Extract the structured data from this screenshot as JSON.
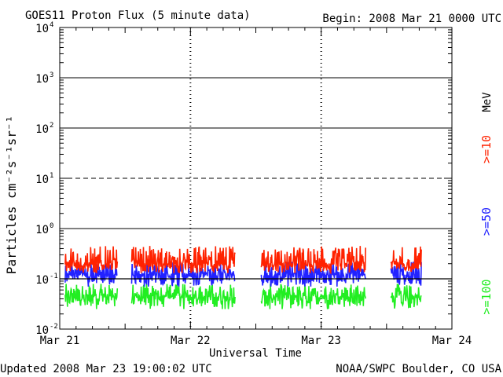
{
  "header": {
    "title": "GOES11 Proton Flux (5 minute data)",
    "begin": "Begin: 2008 Mar 21 0000 UTC"
  },
  "footer": {
    "updated": "Updated 2008 Mar 23 19:00:02 UTC",
    "source": "NOAA/SWPC Boulder, CO USA"
  },
  "legend": {
    "unit": "MeV",
    "entries": [
      {
        "label": ">=10",
        "color": "#ff2200"
      },
      {
        "label": ">=50",
        "color": "#2222ff"
      },
      {
        "label": ">=100",
        "color": "#22ee22"
      }
    ]
  },
  "chart_data": {
    "type": "line",
    "title": "GOES11 Proton Flux (5 minute data)",
    "xlabel": "Universal Time",
    "ylabel": "Particles cm⁻²s⁻¹sr⁻¹",
    "yscale": "log",
    "ylim": [
      0.01,
      10000
    ],
    "xlim": [
      0,
      72
    ],
    "x_unit": "hours since 2008 Mar 21 0000 UTC",
    "x_ticks": [
      {
        "x": 0,
        "label": "Mar 21"
      },
      {
        "x": 24,
        "label": "Mar 22"
      },
      {
        "x": 48,
        "label": "Mar 23"
      },
      {
        "x": 72,
        "label": "Mar 24"
      }
    ],
    "y_ticks": [
      {
        "y": 0.01,
        "base": "10",
        "exp": "-2"
      },
      {
        "y": 0.1,
        "base": "10",
        "exp": "-1"
      },
      {
        "y": 1,
        "base": "10",
        "exp": "0"
      },
      {
        "y": 10,
        "base": "10",
        "exp": "1"
      },
      {
        "y": 100,
        "base": "10",
        "exp": "2"
      },
      {
        "y": 1000,
        "base": "10",
        "exp": "3"
      },
      {
        "y": 10000,
        "base": "10",
        "exp": "4"
      }
    ],
    "solid_gridlines": [
      1,
      100,
      1000
    ],
    "dashed_gridlines": [
      10
    ],
    "threshold_line": 0.1,
    "data_segments_hours": [
      [
        1.0,
        10.6
      ],
      [
        13.2,
        32.2
      ],
      [
        37.0,
        56.2
      ],
      [
        60.8,
        66.4
      ]
    ],
    "series": [
      {
        "name": ">=10",
        "color": "#ff2200",
        "typical": 0.2,
        "range": [
          0.13,
          0.45
        ]
      },
      {
        "name": ">=50",
        "color": "#2222ff",
        "typical": 0.12,
        "range": [
          0.07,
          0.22
        ]
      },
      {
        "name": ">=100",
        "color": "#22ee22",
        "typical": 0.045,
        "range": [
          0.025,
          0.08
        ]
      }
    ]
  }
}
